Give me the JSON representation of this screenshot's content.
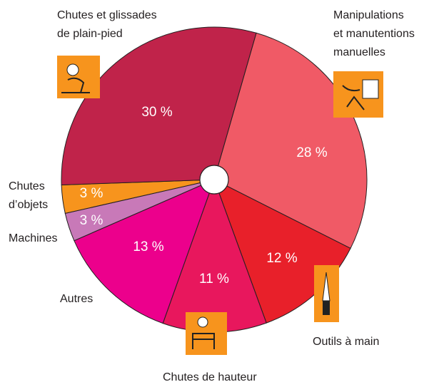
{
  "chart_data": {
    "type": "pie",
    "categories": [
      "Manipulations\net manutentions\nmanuelles",
      "Outils à main",
      "Chutes de hauteur",
      "Autres",
      "Machines",
      "Chutes\nd’objets",
      "Chutes et glissades\nde plain-pied"
    ],
    "values": [
      28,
      12,
      11,
      13,
      3,
      3,
      30
    ],
    "value_labels": [
      "28 %",
      "12 %",
      "11 %",
      "13 %",
      "3 %",
      "3 %",
      "30 %"
    ],
    "colors": [
      "#f05a66",
      "#e8202a",
      "#e8175d",
      "#ec008c",
      "#c879b8",
      "#f7941d",
      "#c0234a"
    ]
  }
}
